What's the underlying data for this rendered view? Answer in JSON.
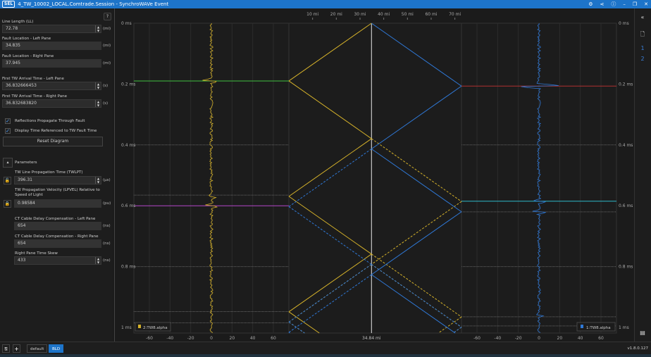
{
  "window": {
    "logo": "SEL",
    "title": "4_TW_10002_LOCAL.Comtrade.Session - SynchroWAVe Event",
    "icons": [
      "gear-icon",
      "share-icon",
      "help-icon",
      "minimize-icon",
      "restore-icon",
      "close-icon"
    ]
  },
  "left_panel": {
    "help_icon": "?",
    "line_length": {
      "label": "Line Length (LL)",
      "value": "72.78",
      "unit": "(mi)"
    },
    "fault_left": {
      "label": "Fault Location - Left Pane",
      "value": "34.835",
      "unit": "(mi)"
    },
    "fault_right": {
      "label": "Fault Location - Right Pane",
      "value": "37.945",
      "unit": "(mi)"
    },
    "arrival_left": {
      "label": "First TW Arrival Time - Left Pane",
      "value": "36.832666453",
      "unit": "(s)"
    },
    "arrival_right": {
      "label": "First TW Arrival Time - Right Pane",
      "value": "36.832683820",
      "unit": "(s)"
    },
    "reflections": {
      "label": "Reflections Propagate Through Fault",
      "checked": true
    },
    "display_time": {
      "label": "Display Time Referenced to TW Fault Time",
      "checked": true
    },
    "reset_button": "Reset Diagram",
    "parameters": {
      "label": "Parameters",
      "twlpt": {
        "label": "TW Line Propagation Time (TWLPT)",
        "value": "396.31",
        "unit": "(µs)"
      },
      "lpvel": {
        "label": "TW Propagation Velocity (LPVEL) Relative to Speed of Light",
        "value": "0.98584",
        "unit": "(pu)"
      },
      "ct_left": {
        "label": "CT Cable Delay Compensation - Left Pane",
        "value": "654",
        "unit": "(ns)"
      },
      "ct_right": {
        "label": "CT Cable Delay Compensation - Right Pane",
        "value": "654",
        "unit": "(ns)"
      },
      "skew": {
        "label": "Right Pane Time Skew",
        "value": "433",
        "unit": "(ns)"
      }
    }
  },
  "plot": {
    "time_ticks": [
      "0 ms",
      "0.2 ms",
      "0.4 ms",
      "0.6 ms",
      "0.8 ms",
      "1 ms"
    ],
    "distance_ticks": [
      "10 mi",
      "20 mi",
      "30 mi",
      "40 mi",
      "50 mi",
      "60 mi",
      "70 mi"
    ],
    "amp_ticks": [
      "-60",
      "-40",
      "-20",
      "0",
      "20",
      "40",
      "60"
    ],
    "fault_label": "34.84 mi",
    "left_legend": "2:TW8.alpha",
    "right_legend": "1:TW8.alpha",
    "colors": {
      "left": "#d4b12a",
      "right": "#2f78d6",
      "green": "#3fbf3f",
      "purple": "#b347c8",
      "red": "#b03030",
      "cyan": "#2fb8c8"
    }
  },
  "chart_data": {
    "type": "line",
    "line_length_mi": 72.78,
    "fault_mi": 34.84,
    "propagation_time_us": 396.31,
    "ylim_ms": [
      0,
      1
    ],
    "xlim_mi": [
      0,
      72.78
    ],
    "amp_xlim": [
      -75,
      75
    ]
  },
  "sidebar_right": {
    "collapse": "«",
    "page_numbers": [
      "1",
      "2"
    ]
  },
  "bottom": {
    "tabs": [
      "default",
      "BLD"
    ],
    "active_tab": "BLD",
    "version": "v1.8.0.127"
  }
}
